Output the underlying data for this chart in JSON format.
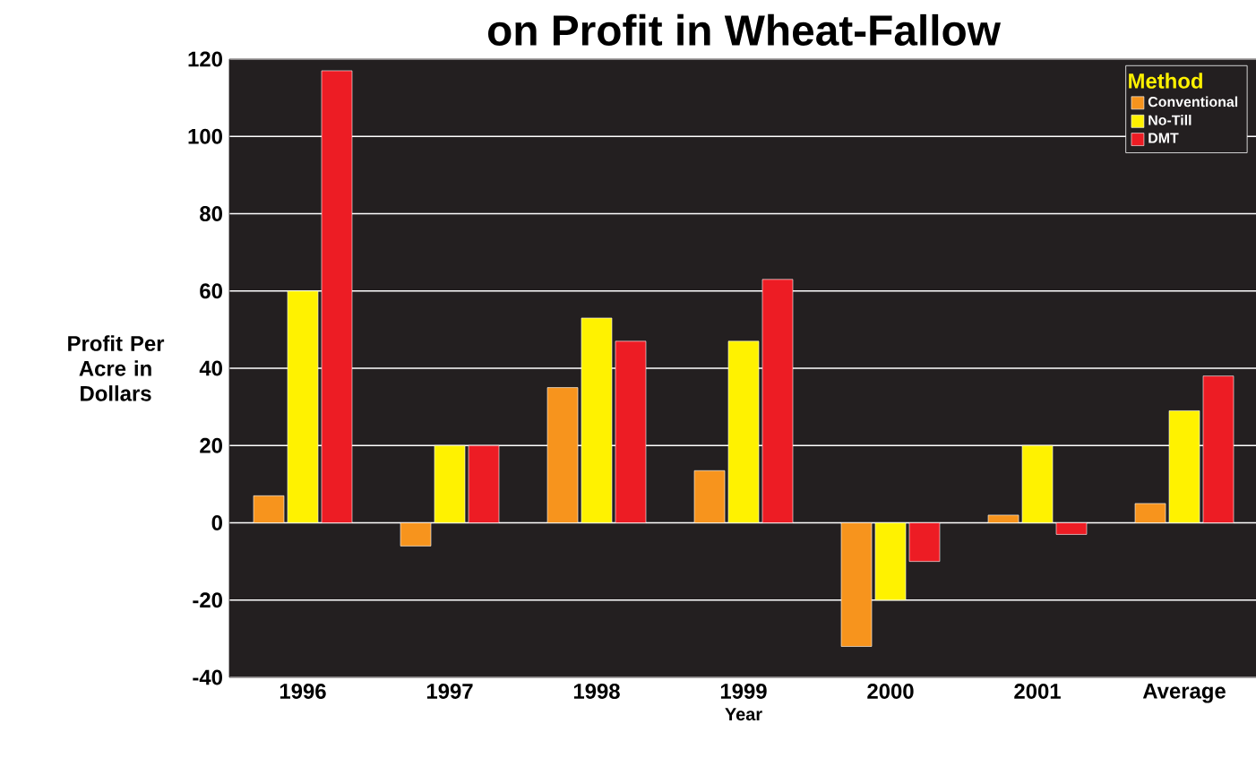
{
  "chart_data": {
    "type": "bar",
    "title": "on Profit in Wheat-Fallow",
    "xlabel": "Year",
    "ylabel": "Profit Per Acre in Dollars",
    "legend_title": "Method",
    "categories": [
      "1996",
      "1997",
      "1998",
      "1999",
      "2000",
      "2001",
      "Average"
    ],
    "series": [
      {
        "name": "Conventional",
        "color": "#f7941d",
        "values": [
          7,
          -6,
          35,
          13.5,
          -32,
          2,
          5
        ]
      },
      {
        "name": "No-Till",
        "color": "#fff200",
        "values": [
          60,
          20,
          53,
          47,
          -20,
          20,
          29
        ]
      },
      {
        "name": "DMT",
        "color": "#ed1c24",
        "values": [
          117,
          20,
          47,
          63,
          -10,
          -3,
          38
        ]
      }
    ],
    "ylim": [
      -40,
      120
    ],
    "yticks": [
      -40,
      -20,
      0,
      20,
      40,
      60,
      80,
      100,
      120
    ],
    "grid": "y",
    "legend": "top right"
  }
}
